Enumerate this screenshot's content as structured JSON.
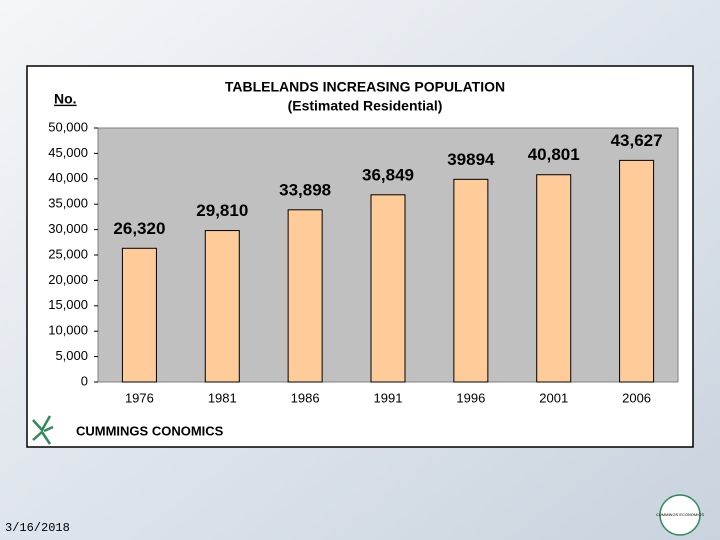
{
  "chart_data": {
    "type": "bar",
    "title": "TABLELANDS INCREASING POPULATION",
    "subtitle": "(Estimated Residential)",
    "y_label": "No.",
    "categories": [
      "1976",
      "1981",
      "1986",
      "1991",
      "1996",
      "2001",
      "2006"
    ],
    "values": [
      26320,
      29810,
      33898,
      36849,
      39894,
      40801,
      43627
    ],
    "value_labels": [
      "26,320",
      "29,810",
      "33,898",
      "36,849",
      "39894",
      "40,801",
      "43,627"
    ],
    "color": "#ffcc99",
    "ylim": [
      0,
      50000
    ],
    "yticks": [
      0,
      {
        "value": 5000,
        "label": "5,000"
      },
      {
        "value": 10000,
        "label": "10,000"
      },
      {
        "value": 15000,
        "label": "15,000"
      },
      {
        "value": 20000,
        "label": "20,000"
      },
      {
        "value": 25000,
        "label": "25,000"
      },
      {
        "value": 30000,
        "label": "30,000"
      },
      {
        "value": 35000,
        "label": "35,000"
      },
      {
        "value": 40000,
        "label": "40,000"
      },
      {
        "value": 45000,
        "label": "45,000"
      },
      {
        "value": 50000,
        "label": "50,000"
      }
    ],
    "grid": false
  },
  "footer": {
    "brand": "CUMMINGS CONOMICS",
    "date": "3/16/2018",
    "logo_text": "CUMMINGS ECONOMICS"
  }
}
